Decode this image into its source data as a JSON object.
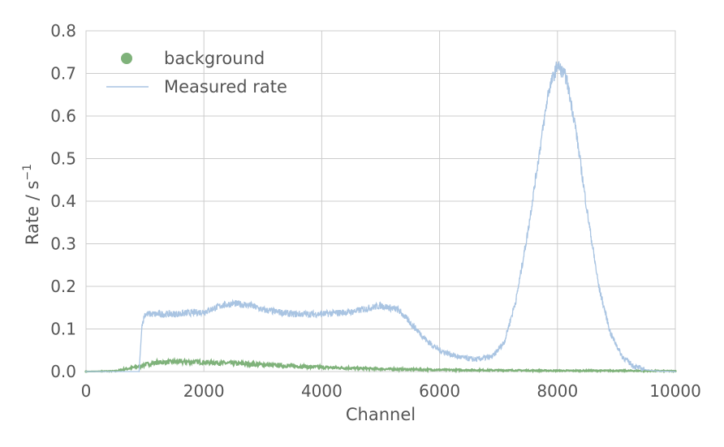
{
  "chart_data": {
    "type": "line",
    "title": "",
    "xlabel": "Channel",
    "ylabel": "Rate / s",
    "ylabel_superscript": "−1",
    "xlim": [
      0,
      10000
    ],
    "ylim": [
      0,
      0.8
    ],
    "xticks": [
      0,
      2000,
      4000,
      6000,
      8000,
      10000
    ],
    "xtick_labels": [
      "0",
      "2000",
      "4000",
      "6000",
      "8000",
      "10000"
    ],
    "yticks": [
      0.0,
      0.1,
      0.2,
      0.3,
      0.4,
      0.5,
      0.6,
      0.7,
      0.8
    ],
    "ytick_labels": [
      "0.0",
      "0.1",
      "0.2",
      "0.3",
      "0.4",
      "0.5",
      "0.6",
      "0.7",
      "0.8"
    ],
    "grid": true,
    "legend_position": "top-left",
    "series": [
      {
        "name": "background",
        "style": "markers",
        "color": "#7fb27a",
        "x": [
          0,
          500,
          600,
          900,
          1000,
          1200,
          1500,
          1800,
          2000,
          2500,
          3000,
          3500,
          4000,
          4500,
          5000,
          5500,
          6000,
          7000,
          8000,
          9000,
          10000
        ],
        "y": [
          0.0,
          0.001,
          0.004,
          0.012,
          0.016,
          0.021,
          0.023,
          0.023,
          0.022,
          0.019,
          0.016,
          0.013,
          0.01,
          0.008,
          0.006,
          0.005,
          0.004,
          0.003,
          0.002,
          0.002,
          0.001
        ]
      },
      {
        "name": "Measured rate",
        "style": "line",
        "color": "#a9c4e2",
        "x": [
          0,
          900,
          950,
          1000,
          1200,
          1500,
          2000,
          2300,
          2500,
          2800,
          3000,
          3500,
          4000,
          4500,
          5000,
          5300,
          5500,
          5800,
          6000,
          6300,
          6600,
          6900,
          7100,
          7300,
          7500,
          7700,
          7850,
          8000,
          8150,
          8300,
          8500,
          8700,
          8900,
          9100,
          9300,
          9500,
          9700,
          10000
        ],
        "y": [
          0.0,
          0.0,
          0.11,
          0.135,
          0.135,
          0.135,
          0.14,
          0.155,
          0.16,
          0.155,
          0.145,
          0.135,
          0.135,
          0.14,
          0.155,
          0.145,
          0.115,
          0.07,
          0.05,
          0.035,
          0.028,
          0.035,
          0.07,
          0.17,
          0.33,
          0.52,
          0.66,
          0.72,
          0.69,
          0.58,
          0.38,
          0.2,
          0.09,
          0.035,
          0.012,
          0.004,
          0.001,
          0.0
        ]
      }
    ]
  }
}
